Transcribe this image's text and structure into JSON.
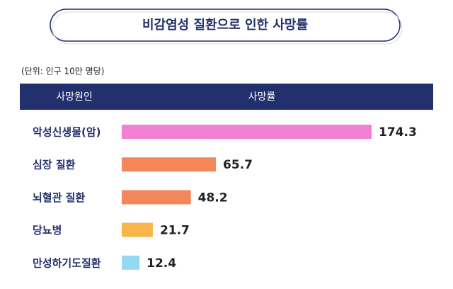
{
  "chart_data": {
    "type": "bar",
    "orientation": "horizontal",
    "title": "비감염성 질환으로 인한 사망률",
    "unit_note": "(단위: 인구 10만 명당)",
    "header": [
      "사망원인",
      "사망률"
    ],
    "categories": [
      "악성신생물(암)",
      "심장 질환",
      "뇌혈관 질환",
      "당뇨병",
      "만성하기도질환"
    ],
    "values": [
      174.3,
      65.7,
      48.2,
      21.7,
      12.4
    ],
    "colors": [
      "#f27fd2",
      "#f4875a",
      "#f4875a",
      "#f8b54c",
      "#94d9f2"
    ]
  }
}
